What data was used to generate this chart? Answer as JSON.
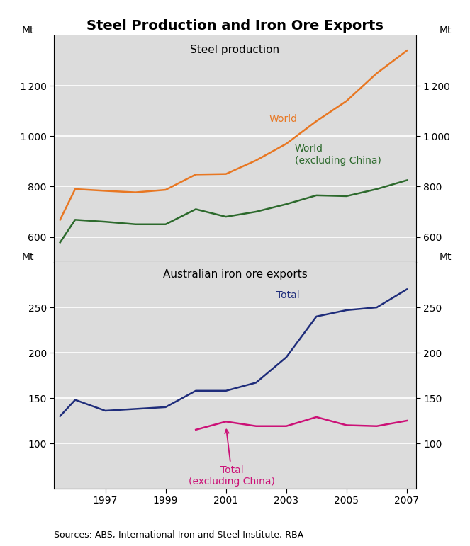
{
  "title": "Steel Production and Iron Ore Exports",
  "top_panel_label": "Steel production",
  "bottom_panel_label": "Australian iron ore exports",
  "source_text": "Sources: ABS; International Iron and Steel Institute; RBA",
  "years": [
    1995.5,
    1996,
    1997,
    1998,
    1999,
    2000,
    2001,
    2002,
    2003,
    2004,
    2005,
    2006,
    2007
  ],
  "steel_world": [
    668,
    790,
    783,
    777,
    787,
    848,
    850,
    904,
    970,
    1060,
    1140,
    1250,
    1340
  ],
  "steel_world_ex_china": [
    578,
    668,
    660,
    650,
    650,
    710,
    680,
    700,
    730,
    765,
    762,
    790,
    825
  ],
  "iron_total": [
    130,
    148,
    136,
    138,
    140,
    158,
    158,
    167,
    195,
    240,
    247,
    250,
    270
  ],
  "iron_ex_china": [
    null,
    null,
    null,
    null,
    null,
    115,
    124,
    119,
    119,
    129,
    120,
    119,
    125
  ],
  "steel_ylim": [
    500,
    1400
  ],
  "steel_yticks": [
    600,
    800,
    1000,
    1200
  ],
  "iron_ylim": [
    50,
    300
  ],
  "iron_yticks": [
    100,
    150,
    200,
    250
  ],
  "xlim_left": 1995.3,
  "xlim_right": 2007.3,
  "x_ticks": [
    1997,
    1999,
    2001,
    2003,
    2005,
    2007
  ],
  "world_color": "#E87722",
  "world_ex_china_color": "#2D6A2D",
  "total_color": "#1F2D7B",
  "total_ex_china_color": "#CC1177",
  "background_color": "#DCDCDC",
  "grid_color": "#FFFFFF"
}
